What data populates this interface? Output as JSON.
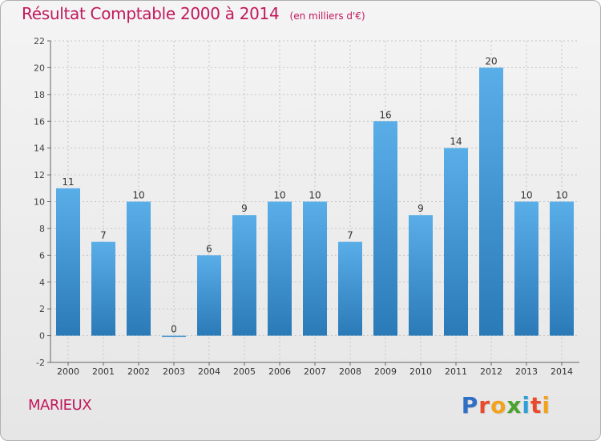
{
  "header": {
    "title": "Résultat Comptable 2000 à 2014",
    "subtitle": "(en milliers d'€)"
  },
  "footer": {
    "commune": "MARIEUX",
    "brand_letters": [
      "P",
      "r",
      "o",
      "x",
      "i",
      "t",
      "i"
    ],
    "brand_colors": [
      "#2f6fc4",
      "#e84b2c",
      "#f2a21b",
      "#4aa32e",
      "#2f9fd8",
      "#e84b2c",
      "#f2a21b"
    ]
  },
  "chart_data": {
    "type": "bar",
    "title": "Résultat Comptable 2000 à 2014",
    "subtitle": "(en milliers d'€)",
    "xlabel": "",
    "ylabel": "",
    "categories": [
      "2000",
      "2001",
      "2002",
      "2003",
      "2004",
      "2005",
      "2006",
      "2007",
      "2008",
      "2009",
      "2010",
      "2011",
      "2012",
      "2013",
      "2014"
    ],
    "values": [
      11,
      7,
      10,
      0,
      6,
      9,
      10,
      10,
      7,
      16,
      9,
      14,
      20,
      10,
      10
    ],
    "ylim": [
      -2,
      22
    ],
    "yticks": [
      -2,
      0,
      2,
      4,
      6,
      8,
      10,
      12,
      14,
      16,
      18,
      20,
      22
    ],
    "grid": true,
    "bar_color_top": "#5aaee8",
    "bar_color_bottom": "#2a7ab8"
  }
}
